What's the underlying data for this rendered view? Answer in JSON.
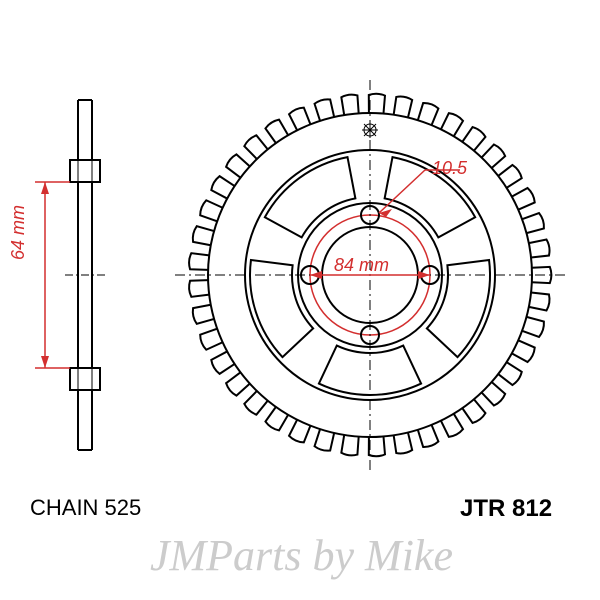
{
  "diagram": {
    "type": "engineering-drawing",
    "part_number": "JTR 812",
    "chain_spec": "CHAIN 525",
    "dimensions": {
      "bolt_circle_diameter": "84 mm",
      "hub_width": "64 mm",
      "bolt_hole_diameter": "10.5"
    },
    "colors": {
      "outline": "#000000",
      "dimension": "#d32f2f",
      "background": "#ffffff",
      "watermark": "#cccccc"
    },
    "stroke_widths": {
      "outline": 2,
      "dimension": 1.5,
      "thin": 1
    },
    "font_sizes": {
      "label": 22,
      "dimension": 18
    },
    "sprocket": {
      "teeth_count": 41,
      "bolt_holes": 4,
      "spokes": 5
    },
    "watermark_text": "JMParts by Mike"
  }
}
